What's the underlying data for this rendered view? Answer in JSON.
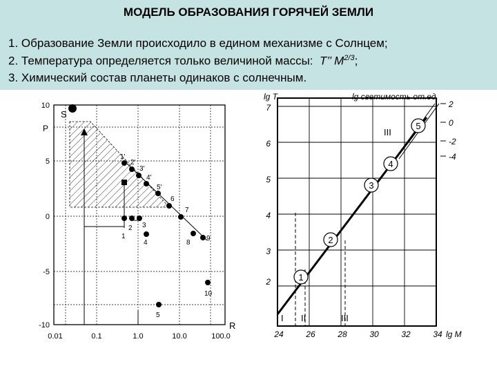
{
  "header": {
    "title": "МОДЕЛЬ ОБРАЗОВАНИЯ ГОРЯЧЕЙ ЗЕМЛИ",
    "line1": "1. Образование Земли происходило в едином механизме с Солнцем;",
    "line2_text": "2. Температура определяется только величиной массы:",
    "line2_formula": "T’’ M",
    "line2_exp": "2/3",
    "line2_end": ";",
    "line3": "3. Химический состав планеты одинаков с солнечным."
  },
  "left_chart": {
    "axis_letter_y": "P",
    "axis_letter_x": "R",
    "sun_label": "S",
    "y_ticks": [
      "10",
      "5",
      "0",
      "-5",
      "-10"
    ],
    "x_ticks": [
      "0.01",
      "0.1",
      "1.0",
      "10.0",
      "100.0"
    ],
    "points": [
      "1'",
      "2'",
      "3'",
      "4'",
      "5'",
      "6",
      "7",
      "1",
      "2",
      "3",
      "4",
      "8",
      "9",
      "10",
      "5"
    ]
  },
  "right_chart": {
    "y_label": "lg T",
    "y2_label": "lg светимость от.ед.",
    "x_label": "lg M",
    "y_ticks": [
      "7",
      "6",
      "5",
      "4",
      "3",
      "2"
    ],
    "y2_ticks": [
      "2",
      "0",
      "-2",
      "-4"
    ],
    "x_ticks": [
      "24",
      "26",
      "28",
      "30",
      "32",
      "34"
    ],
    "roman_labels": [
      "I",
      "II",
      "III",
      "III"
    ],
    "circles": [
      "1",
      "2",
      "3",
      "4",
      "5"
    ]
  },
  "colors": {
    "header_bg": "#c6e3e3"
  }
}
